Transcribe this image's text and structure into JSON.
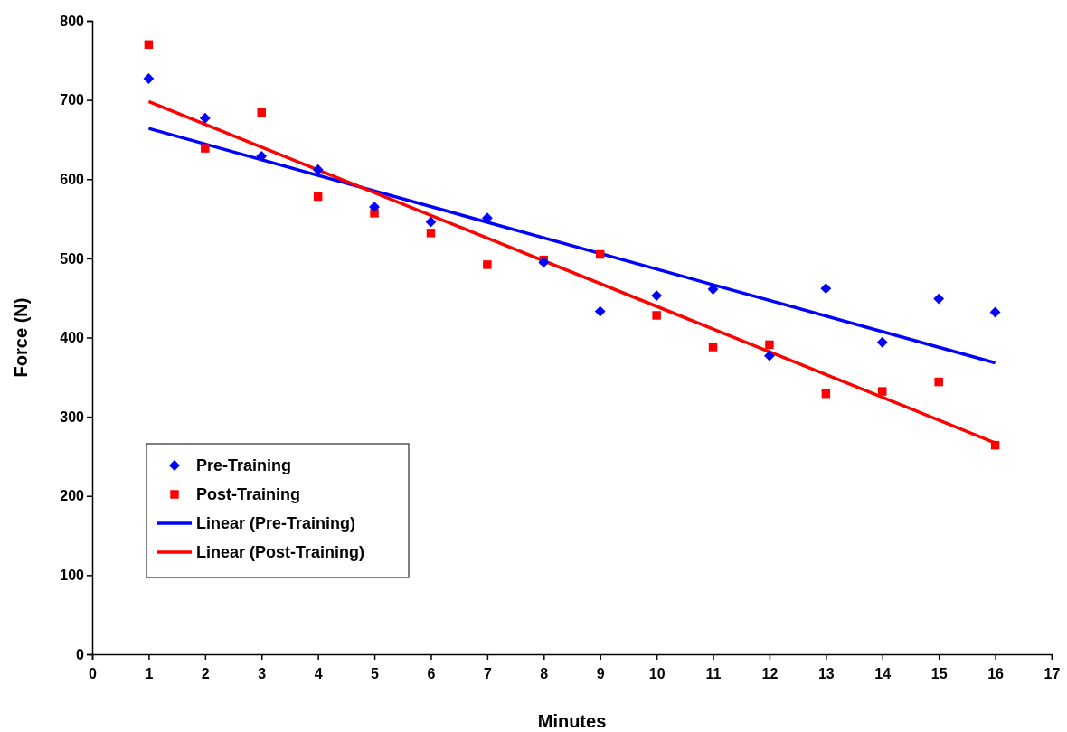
{
  "chart_data": {
    "type": "scatter",
    "xlabel": "Minutes",
    "ylabel": "Force (N)",
    "xlim": [
      0,
      17
    ],
    "xticks": [
      0,
      1,
      2,
      3,
      4,
      5,
      6,
      7,
      8,
      9,
      10,
      11,
      12,
      13,
      14,
      15,
      16,
      17
    ],
    "ylim": [
      0,
      800
    ],
    "yticks": [
      0,
      100,
      200,
      300,
      400,
      500,
      600,
      700,
      800
    ],
    "grid": false,
    "legend": "bottom left",
    "series": [
      {
        "name": "Pre-Training",
        "marker": "diamond",
        "color": "#0000ff",
        "x": [
          1,
          2,
          3,
          4,
          5,
          6,
          7,
          8,
          9,
          10,
          11,
          12,
          13,
          14,
          15,
          16
        ],
        "values": [
          727,
          677,
          629,
          612,
          565,
          546,
          551,
          495,
          433,
          453,
          461,
          377,
          462,
          394,
          449,
          432
        ]
      },
      {
        "name": "Post-Training",
        "marker": "square",
        "color": "#ff0000",
        "x": [
          1,
          2,
          3,
          4,
          5,
          6,
          7,
          8,
          9,
          10,
          11,
          12,
          13,
          14,
          15,
          16
        ],
        "values": [
          770,
          639,
          684,
          578,
          557,
          532,
          492,
          498,
          505,
          428,
          388,
          391,
          329,
          332,
          344,
          264
        ]
      },
      {
        "name": "Linear (Pre-Training)",
        "type": "line",
        "color": "#0000ff",
        "x": [
          1,
          16
        ],
        "values": [
          664,
          368
        ]
      },
      {
        "name": "Linear (Post-Training)",
        "type": "line",
        "color": "#ff0000",
        "x": [
          1,
          16
        ],
        "values": [
          698,
          267
        ]
      }
    ]
  }
}
